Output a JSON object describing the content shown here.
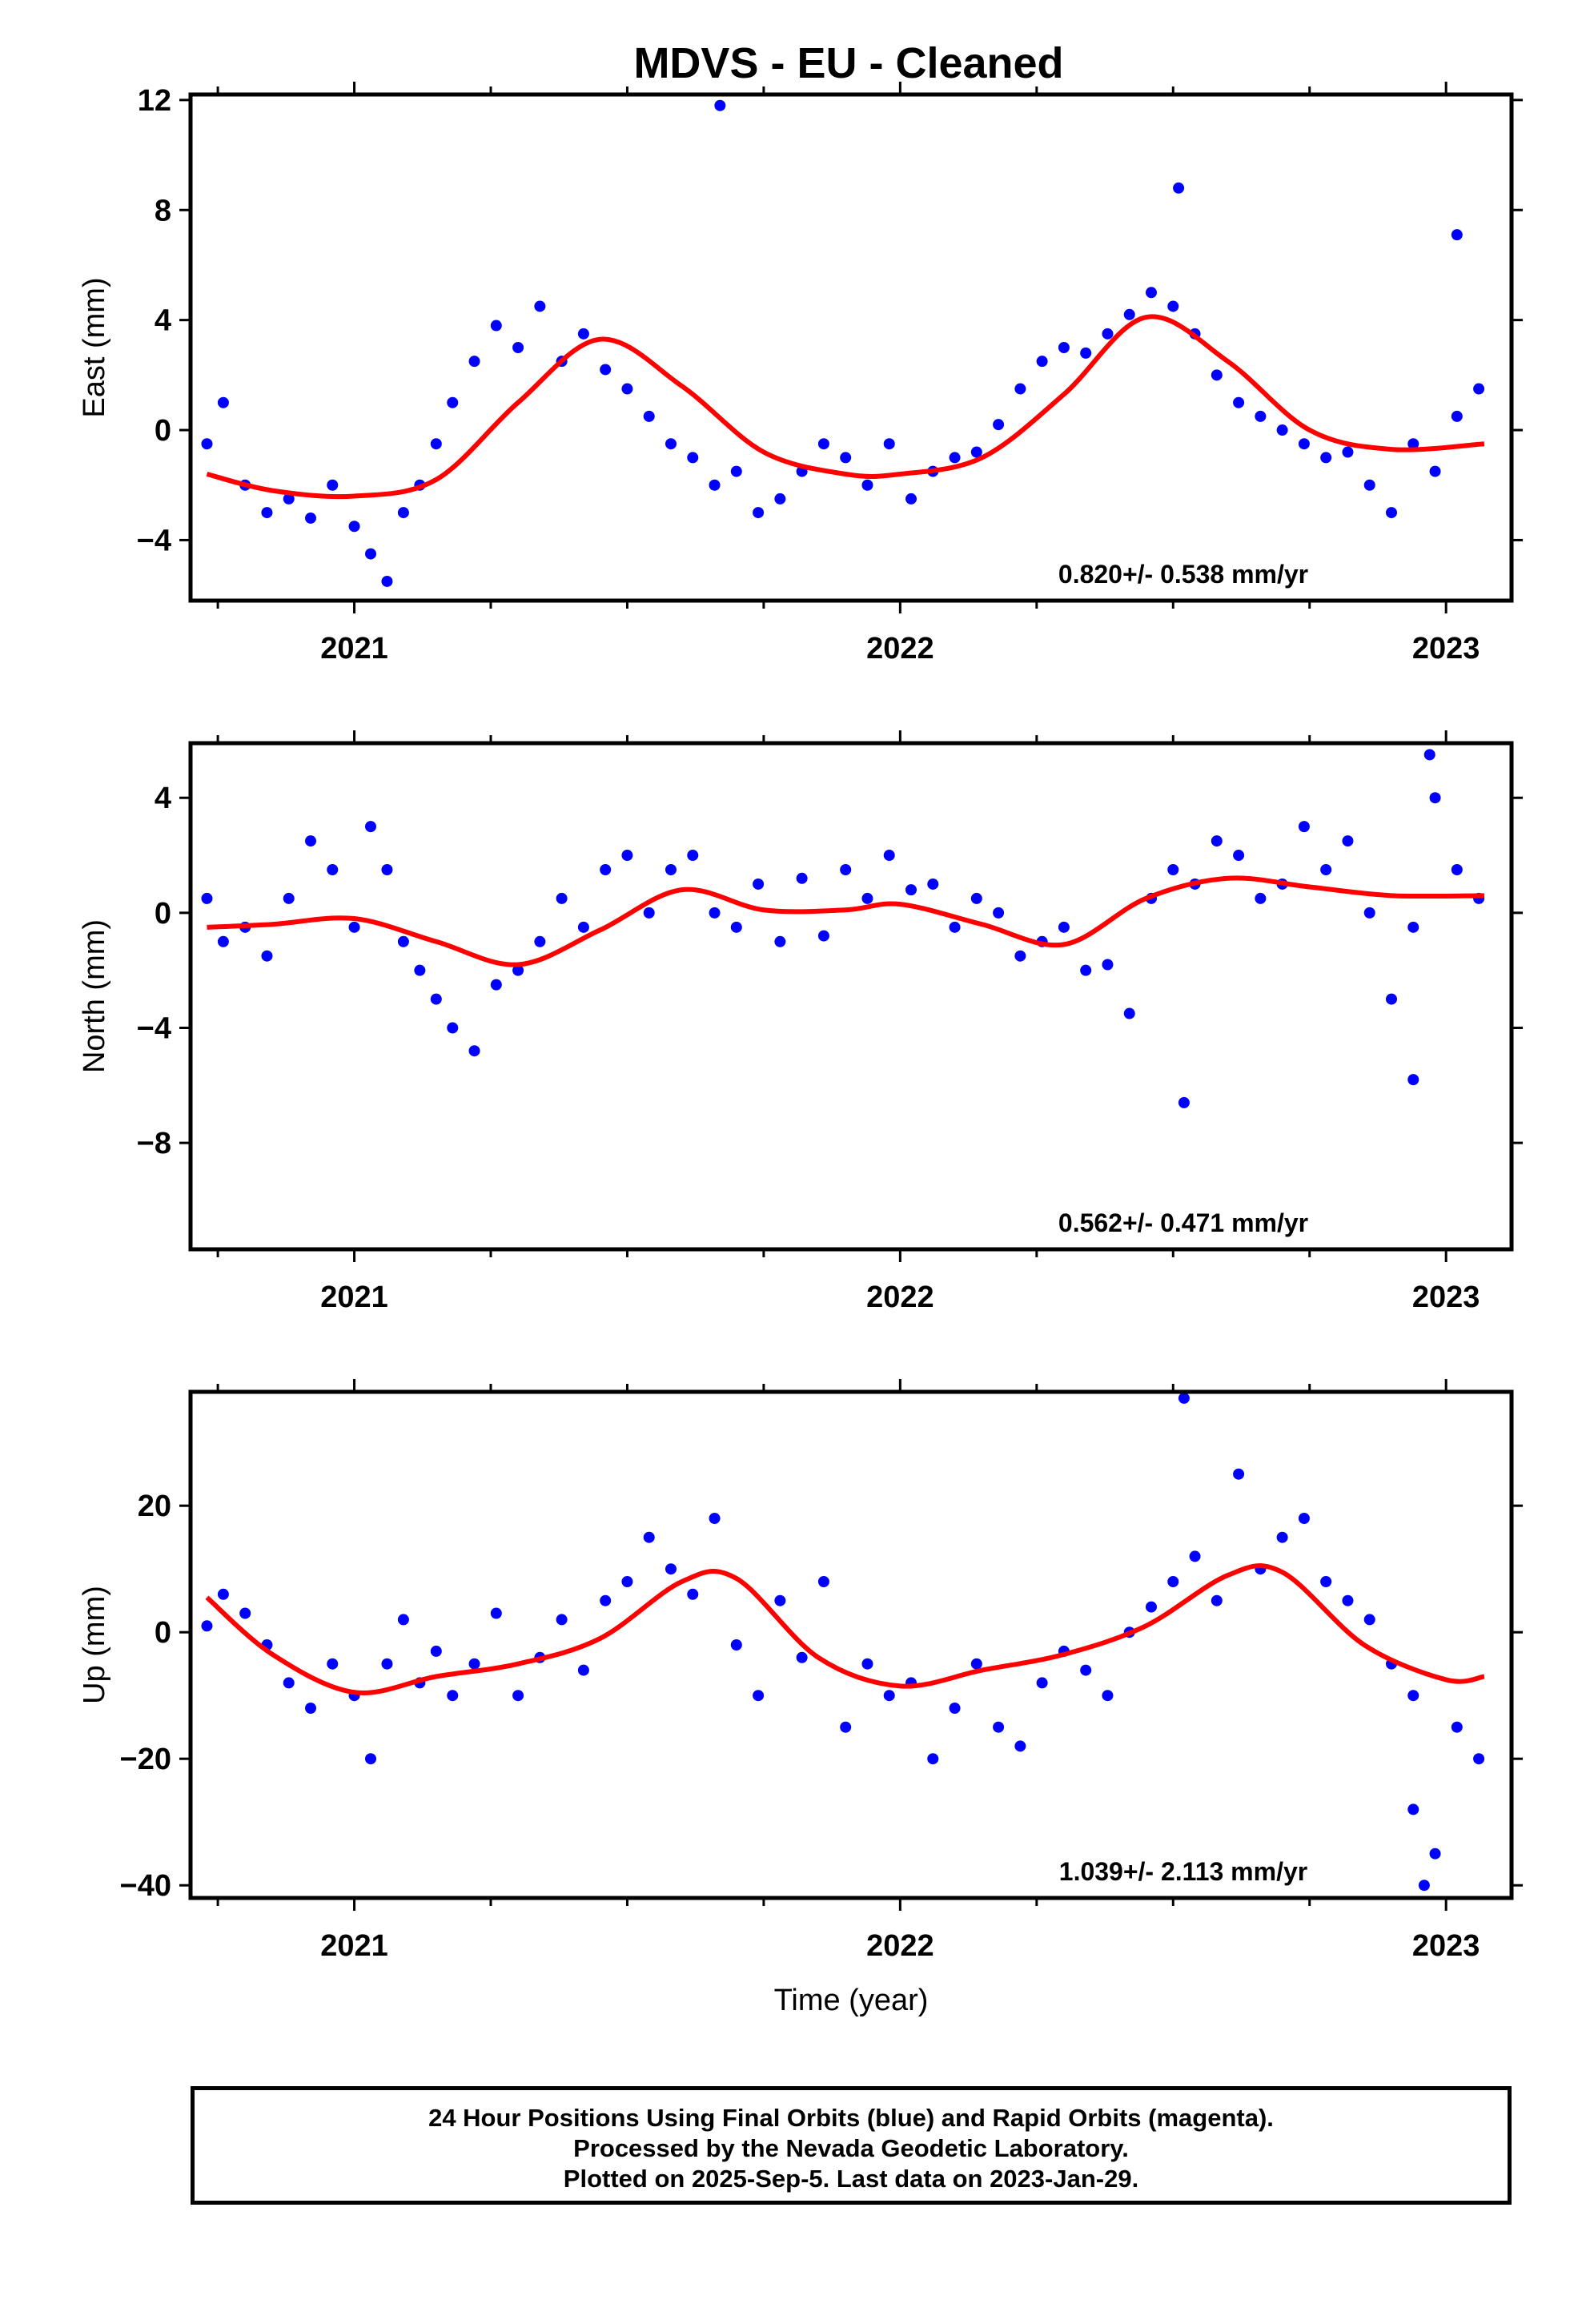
{
  "title": "MDVS  - EU - Cleaned",
  "footer": {
    "lines": [
      "24 Hour Positions Using Final Orbits (blue) and Rapid Orbits (magenta).",
      "Processed by the Nevada Geodetic Laboratory.",
      "Plotted on 2025-Sep-5. Last data on 2023-Jan-29."
    ]
  },
  "colors": {
    "points": "#0000ff",
    "fit": "#ff0000",
    "axes": "#000000"
  },
  "chart_data": [
    {
      "type": "scatter",
      "ylabel": "East (mm)",
      "xlabel": "",
      "xlim": [
        2020.7,
        2023.12
      ],
      "ylim": [
        -6.2,
        12.2
      ],
      "yticks": [
        -4,
        0,
        4,
        8,
        12
      ],
      "ytick_labels": [
        "−4",
        "0",
        "4",
        "8",
        "12"
      ],
      "xticks": [
        2021,
        2022,
        2023
      ],
      "rate": "0.820+/- 0.538 mm/yr",
      "fit": {
        "x": [
          2020.73,
          2020.85,
          2021.0,
          2021.15,
          2021.3,
          2021.45,
          2021.6,
          2021.75,
          2021.9,
          2022.0,
          2022.15,
          2022.3,
          2022.45,
          2022.6,
          2022.75,
          2022.9,
          2023.07
        ],
        "y": [
          -1.6,
          -2.2,
          -2.4,
          -1.8,
          1.0,
          3.3,
          1.6,
          -0.8,
          -1.6,
          -1.6,
          -1.0,
          1.3,
          4.1,
          2.5,
          0.0,
          -0.7,
          -0.5
        ]
      },
      "series": [
        {
          "x": [
            2020.73,
            2020.76,
            2020.8,
            2020.84,
            2020.88,
            2020.92,
            2020.96,
            2021.0,
            2021.03,
            2021.06,
            2021.09,
            2021.12,
            2021.15,
            2021.18,
            2021.22,
            2021.26,
            2021.3,
            2021.34,
            2021.38,
            2021.42,
            2021.46,
            2021.5,
            2021.54,
            2021.58,
            2021.62,
            2021.66,
            2021.7,
            2021.74,
            2021.78,
            2021.82,
            2021.86,
            2021.9,
            2021.94,
            2021.98,
            2022.02,
            2022.06,
            2022.1,
            2022.14,
            2022.18,
            2022.22,
            2022.26,
            2022.3,
            2022.34,
            2022.38,
            2022.42,
            2022.46,
            2022.5,
            2022.54,
            2022.58,
            2022.62,
            2022.66,
            2022.7,
            2022.74,
            2022.78,
            2022.82,
            2022.86,
            2022.9,
            2022.94,
            2022.98,
            2023.02,
            2023.06,
            2021.67,
            2022.51,
            2023.02
          ],
          "y": [
            -0.5,
            1.0,
            -2.0,
            -3.0,
            -2.5,
            -3.2,
            -2.0,
            -3.5,
            -4.5,
            -5.5,
            -3.0,
            -2.0,
            -0.5,
            1.0,
            2.5,
            3.8,
            3.0,
            4.5,
            2.5,
            3.5,
            2.2,
            1.5,
            0.5,
            -0.5,
            -1.0,
            -2.0,
            -1.5,
            -3.0,
            -2.5,
            -1.5,
            -0.5,
            -1.0,
            -2.0,
            -0.5,
            -2.5,
            -1.5,
            -1.0,
            -0.8,
            0.2,
            1.5,
            2.5,
            3.0,
            2.8,
            3.5,
            4.2,
            5.0,
            4.5,
            3.5,
            2.0,
            1.0,
            0.5,
            0.0,
            -0.5,
            -1.0,
            -0.8,
            -2.0,
            -3.0,
            -0.5,
            -1.5,
            0.5,
            1.5,
            11.8,
            8.8,
            7.1
          ]
        }
      ]
    },
    {
      "type": "scatter",
      "ylabel": "North (mm)",
      "xlabel": "",
      "xlim": [
        2020.7,
        2023.12
      ],
      "ylim": [
        -11.7,
        5.9
      ],
      "yticks": [
        -8,
        -4,
        0,
        4
      ],
      "ytick_labels": [
        "−8",
        "−4",
        "0",
        "4"
      ],
      "xticks": [
        2021,
        2022,
        2023
      ],
      "rate": "0.562+/- 0.471 mm/yr",
      "fit": {
        "x": [
          2020.73,
          2020.85,
          2021.0,
          2021.15,
          2021.3,
          2021.45,
          2021.6,
          2021.75,
          2021.9,
          2022.0,
          2022.15,
          2022.3,
          2022.45,
          2022.6,
          2022.75,
          2022.9,
          2023.07
        ],
        "y": [
          -0.5,
          -0.4,
          -0.2,
          -1.0,
          -1.8,
          -0.6,
          0.8,
          0.1,
          0.1,
          0.3,
          -0.4,
          -1.1,
          0.5,
          1.2,
          0.9,
          0.6,
          0.6
        ]
      },
      "series": [
        {
          "x": [
            2020.73,
            2020.76,
            2020.8,
            2020.84,
            2020.88,
            2020.92,
            2020.96,
            2021.0,
            2021.03,
            2021.06,
            2021.09,
            2021.12,
            2021.15,
            2021.18,
            2021.22,
            2021.26,
            2021.3,
            2021.34,
            2021.38,
            2021.42,
            2021.46,
            2021.5,
            2021.54,
            2021.58,
            2021.62,
            2021.66,
            2021.7,
            2021.74,
            2021.78,
            2021.82,
            2021.86,
            2021.9,
            2021.94,
            2021.98,
            2022.02,
            2022.06,
            2022.1,
            2022.14,
            2022.18,
            2022.22,
            2022.26,
            2022.3,
            2022.34,
            2022.38,
            2022.42,
            2022.46,
            2022.5,
            2022.54,
            2022.58,
            2022.62,
            2022.66,
            2022.7,
            2022.74,
            2022.78,
            2022.82,
            2022.86,
            2022.9,
            2022.94,
            2022.98,
            2023.02,
            2023.06,
            2022.52,
            2022.94,
            2022.97
          ],
          "y": [
            0.5,
            -1.0,
            -0.5,
            -1.5,
            0.5,
            2.5,
            1.5,
            -0.5,
            3.0,
            1.5,
            -1.0,
            -2.0,
            -3.0,
            -4.0,
            -4.8,
            -2.5,
            -2.0,
            -1.0,
            0.5,
            -0.5,
            1.5,
            2.0,
            0.0,
            1.5,
            2.0,
            0.0,
            -0.5,
            1.0,
            -1.0,
            1.2,
            -0.8,
            1.5,
            0.5,
            2.0,
            0.8,
            1.0,
            -0.5,
            0.5,
            0.0,
            -1.5,
            -1.0,
            -0.5,
            -2.0,
            -1.8,
            -3.5,
            0.5,
            1.5,
            1.0,
            2.5,
            2.0,
            0.5,
            1.0,
            3.0,
            1.5,
            2.5,
            0.0,
            -3.0,
            -0.5,
            4.0,
            1.5,
            0.5,
            -6.6,
            -5.8,
            5.5
          ]
        }
      ]
    },
    {
      "type": "scatter",
      "ylabel": "Up (mm)",
      "xlabel": "Time (year)",
      "xlim": [
        2020.7,
        2023.12
      ],
      "ylim": [
        -42,
        38
      ],
      "yticks": [
        -40,
        -20,
        0,
        20
      ],
      "ytick_labels": [
        "−40",
        "−20",
        "0",
        "20"
      ],
      "xticks": [
        2021,
        2022,
        2023
      ],
      "rate": "1.039+/- 2.113 mm/yr",
      "fit": {
        "x": [
          2020.73,
          2020.85,
          2021.0,
          2021.15,
          2021.3,
          2021.45,
          2021.6,
          2021.7,
          2021.85,
          2022.0,
          2022.15,
          2022.3,
          2022.45,
          2022.6,
          2022.7,
          2022.85,
          2023.0,
          2023.07
        ],
        "y": [
          5.5,
          -3.5,
          -9.5,
          -7.0,
          -5.0,
          -1.0,
          8.0,
          8.5,
          -4.0,
          -8.5,
          -6.0,
          -3.5,
          1.0,
          9.0,
          9.5,
          -2.0,
          -7.5,
          -7.0
        ]
      },
      "series": [
        {
          "x": [
            2020.73,
            2020.76,
            2020.8,
            2020.84,
            2020.88,
            2020.92,
            2020.96,
            2021.0,
            2021.03,
            2021.06,
            2021.09,
            2021.12,
            2021.15,
            2021.18,
            2021.22,
            2021.26,
            2021.3,
            2021.34,
            2021.38,
            2021.42,
            2021.46,
            2021.5,
            2021.54,
            2021.58,
            2021.62,
            2021.66,
            2021.7,
            2021.74,
            2021.78,
            2021.82,
            2021.86,
            2021.9,
            2021.94,
            2021.98,
            2022.02,
            2022.06,
            2022.1,
            2022.14,
            2022.18,
            2022.22,
            2022.26,
            2022.3,
            2022.34,
            2022.38,
            2022.42,
            2022.46,
            2022.5,
            2022.54,
            2022.58,
            2022.62,
            2022.66,
            2022.7,
            2022.74,
            2022.78,
            2022.82,
            2022.86,
            2022.9,
            2022.94,
            2022.98,
            2023.02,
            2023.06,
            2022.52,
            2022.94,
            2022.96
          ],
          "y": [
            1.0,
            6.0,
            3.0,
            -2.0,
            -8.0,
            -12.0,
            -5.0,
            -10.0,
            -20.0,
            -5.0,
            2.0,
            -8.0,
            -3.0,
            -10.0,
            -5.0,
            3.0,
            -10.0,
            -4.0,
            2.0,
            -6.0,
            5.0,
            8.0,
            15.0,
            10.0,
            6.0,
            18.0,
            -2.0,
            -10.0,
            5.0,
            -4.0,
            8.0,
            -15.0,
            -5.0,
            -10.0,
            -8.0,
            -20.0,
            -12.0,
            -5.0,
            -15.0,
            -18.0,
            -8.0,
            -3.0,
            -6.0,
            -10.0,
            0.0,
            4.0,
            8.0,
            12.0,
            5.0,
            25.0,
            10.0,
            15.0,
            18.0,
            8.0,
            5.0,
            2.0,
            -5.0,
            -10.0,
            -35.0,
            -15.0,
            -20.0,
            37.0,
            -28.0,
            -40.0
          ]
        }
      ]
    }
  ]
}
